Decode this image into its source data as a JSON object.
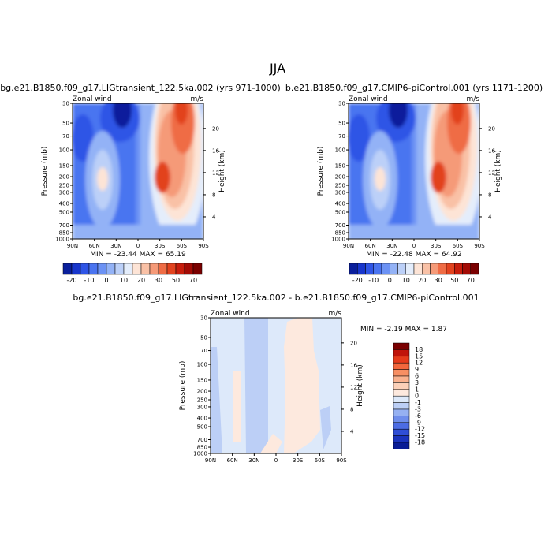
{
  "figure": {
    "season": "JJA",
    "panel_left_title": "bg.e21.B1850.f09_g17.LIGtransient_122.5ka.002 (yrs 971-1000)",
    "panel_right_title": "b.e21.B1850.f09_g17.CMIP6-piControl.001 (yrs 1171-1200)",
    "diff_title": "bg.e21.B1850.f09_g17.LIGtransient_122.5ka.002 - b.e21.B1850.f09_g17.CMIP6-piControl.001",
    "left_minmax": "MIN = -23.44   MAX =  65.19",
    "right_minmax": "MIN = -22.48   MAX =  64.92",
    "diff_minmax": "MIN =  -2.19   MAX =   1.87"
  },
  "chart_data": [
    {
      "type": "heatmap",
      "name": "LIG transient zonal wind (JJA)",
      "variable": "Zonal wind",
      "units": "m/s",
      "xlabel": "",
      "ylabel": "Pressure (mb)",
      "y2label": "Height (km)",
      "x_ticks": [
        "90N",
        "60N",
        "30N",
        "0",
        "30S",
        "60S",
        "90S"
      ],
      "y_ticks": [
        "30",
        "50",
        "70",
        "100",
        "150",
        "200",
        "250",
        "300",
        "400",
        "500",
        "700",
        "850",
        "1000"
      ],
      "y2_ticks": [
        "20",
        "16",
        "12",
        "8",
        "4"
      ],
      "levels": [
        -20,
        -15,
        -10,
        -5,
        0,
        5,
        10,
        15,
        20,
        25,
        30,
        40,
        50,
        60,
        70
      ],
      "min": -23.44,
      "max": 65.19
    },
    {
      "type": "heatmap",
      "name": "piControl zonal wind (JJA)",
      "variable": "Zonal wind",
      "units": "m/s",
      "xlabel": "",
      "ylabel": "Pressure (mb)",
      "y2label": "Height (km)",
      "x_ticks": [
        "90N",
        "60N",
        "30N",
        "0",
        "30S",
        "60S",
        "90S"
      ],
      "y_ticks": [
        "30",
        "50",
        "70",
        "100",
        "150",
        "200",
        "250",
        "300",
        "400",
        "500",
        "700",
        "850",
        "1000"
      ],
      "y2_ticks": [
        "20",
        "16",
        "12",
        "8",
        "4"
      ],
      "levels": [
        -20,
        -15,
        -10,
        -5,
        0,
        5,
        10,
        15,
        20,
        25,
        30,
        40,
        50,
        60,
        70
      ],
      "min": -22.48,
      "max": 64.92
    },
    {
      "type": "heatmap",
      "name": "Difference LIG - piControl (JJA)",
      "variable": "Zonal wind",
      "units": "m/s",
      "xlabel": "",
      "ylabel": "Pressure (mb)",
      "y2label": "Height (km)",
      "x_ticks": [
        "90N",
        "60N",
        "30N",
        "0",
        "30S",
        "60S",
        "90S"
      ],
      "y_ticks": [
        "30",
        "50",
        "70",
        "100",
        "150",
        "200",
        "250",
        "300",
        "400",
        "500",
        "700",
        "850",
        "1000"
      ],
      "y2_ticks": [
        "20",
        "16",
        "12",
        "8",
        "4"
      ],
      "levels": [
        -18,
        -15,
        -12,
        -9,
        -6,
        -3,
        -1,
        0,
        1,
        3,
        6,
        9,
        12,
        15,
        18
      ],
      "min": -2.19,
      "max": 1.87
    }
  ],
  "colorbar_main": {
    "colors": [
      "#0a1f9c",
      "#1836cc",
      "#2f55e6",
      "#4a74f0",
      "#6c92f4",
      "#93b2f6",
      "#bcd0f8",
      "#e4edfb",
      "#fde4d6",
      "#f9c1a6",
      "#f59a78",
      "#ef6c45",
      "#e2431f",
      "#c71d0c",
      "#a30b05",
      "#7a0000"
    ],
    "labels": [
      "-20",
      "-10",
      "0",
      "10",
      "20",
      "30",
      "50",
      "70"
    ]
  },
  "colorbar_diff": {
    "colors": [
      "#7a0000",
      "#c0140a",
      "#e53a1a",
      "#f2673c",
      "#f78f63",
      "#f9b18e",
      "#fbd0b8",
      "#fde9de",
      "#dde9fa",
      "#bccff6",
      "#96b1f2",
      "#6f8eec",
      "#4c6ce4",
      "#2f4ed6",
      "#1a33bd",
      "#091c95"
    ],
    "labels": [
      "18",
      "15",
      "12",
      "9",
      "6",
      "3",
      "1",
      "0",
      "-1",
      "-3",
      "-6",
      "-9",
      "-12",
      "-15",
      "-18"
    ]
  }
}
